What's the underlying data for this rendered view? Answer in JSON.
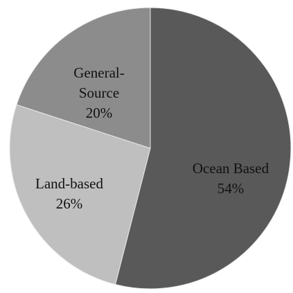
{
  "chart_data": {
    "type": "pie",
    "title": "",
    "slices": [
      {
        "label": "Ocean Based",
        "value": 54,
        "percent_label": "54%",
        "color": "#595959"
      },
      {
        "label": "Land-based",
        "value": 26,
        "percent_label": "26%",
        "color": "#bfbfbf"
      },
      {
        "label": "General-Source",
        "value": 20,
        "percent_label": "20%",
        "color": "#8c8c8c"
      }
    ],
    "legend": "none",
    "start": "top",
    "direction": "clockwise"
  }
}
